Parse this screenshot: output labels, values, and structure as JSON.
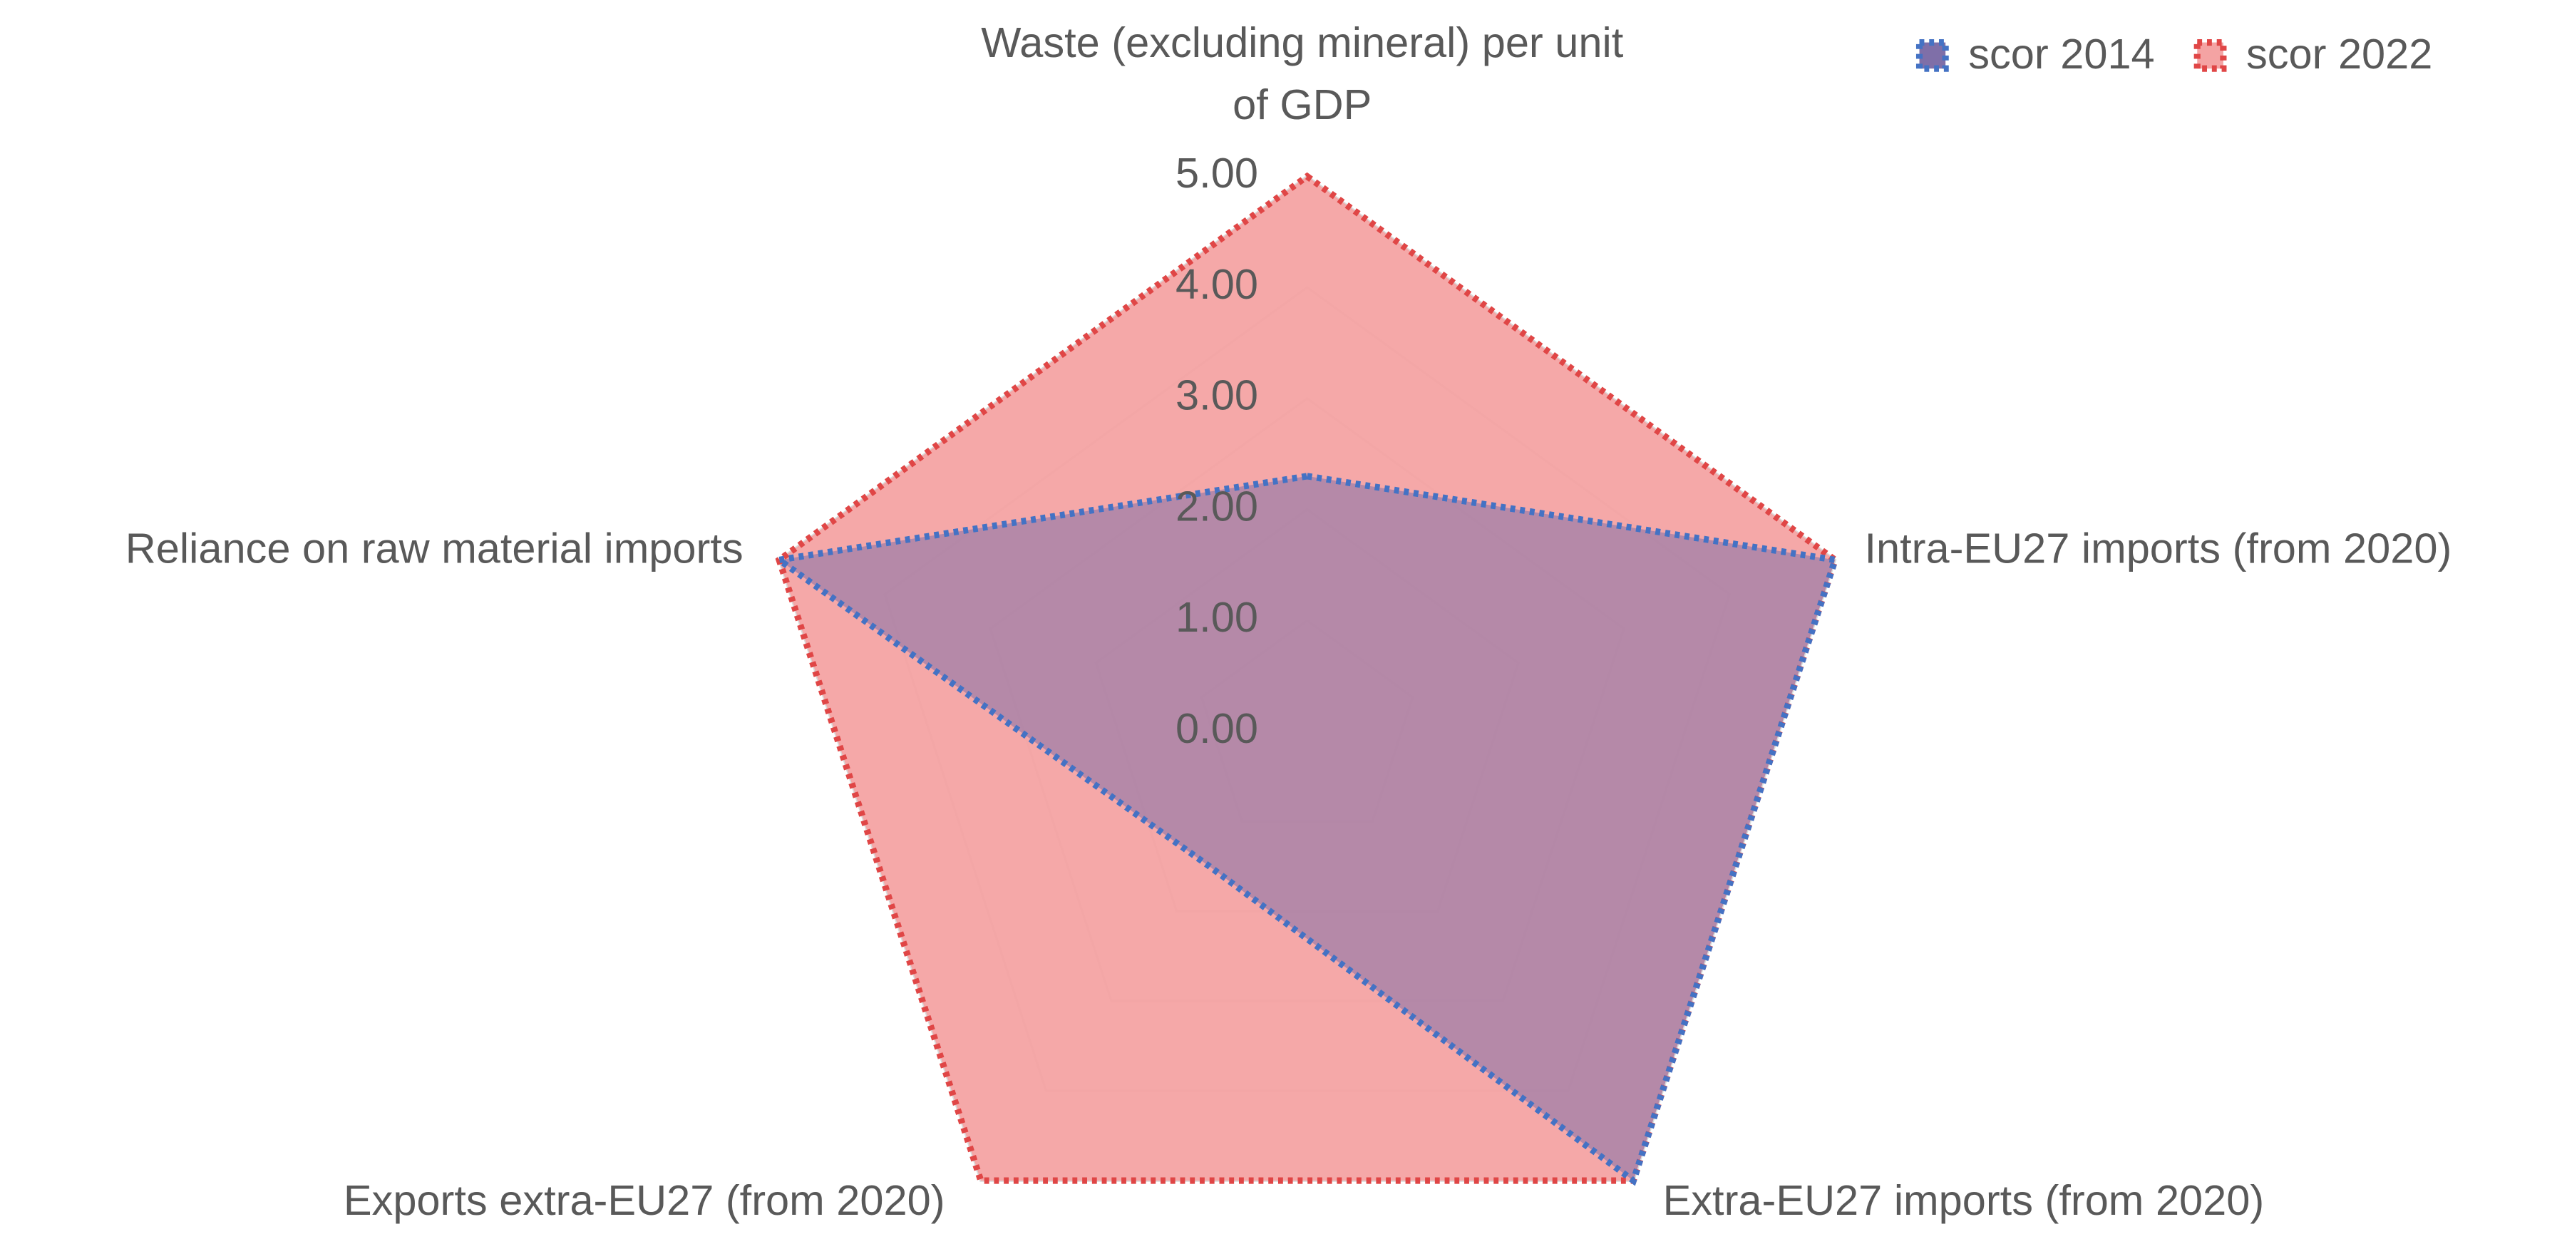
{
  "chart_data": {
    "type": "radar",
    "categories": [
      "Waste (excluding mineral) per unit of GDP",
      "Intra-EU27 imports (from 2020)",
      "Extra-EU27 imports (from 2020)",
      "Exports extra-EU27 (from 2020)",
      "Reliance on raw material imports"
    ],
    "series": [
      {
        "name": "scor 2014",
        "color": "#4472c4",
        "fill": "#7f6fa8",
        "values": [
          2.3,
          5,
          5,
          1.5,
          5
        ]
      },
      {
        "name": "scor 2022",
        "color": "#e04646",
        "fill": "#f4a3a3",
        "values": [
          5,
          5,
          5,
          5,
          5
        ]
      }
    ],
    "ylim": [
      0,
      5
    ],
    "yticks": [
      {
        "value": 0,
        "label": "0.00"
      },
      {
        "value": 1,
        "label": "1.00"
      },
      {
        "value": 2,
        "label": "2.00"
      },
      {
        "value": 3,
        "label": "3.00"
      },
      {
        "value": 4,
        "label": "4.00"
      },
      {
        "value": 5,
        "label": "5.00"
      }
    ],
    "grid": true,
    "legend": "top-right"
  }
}
